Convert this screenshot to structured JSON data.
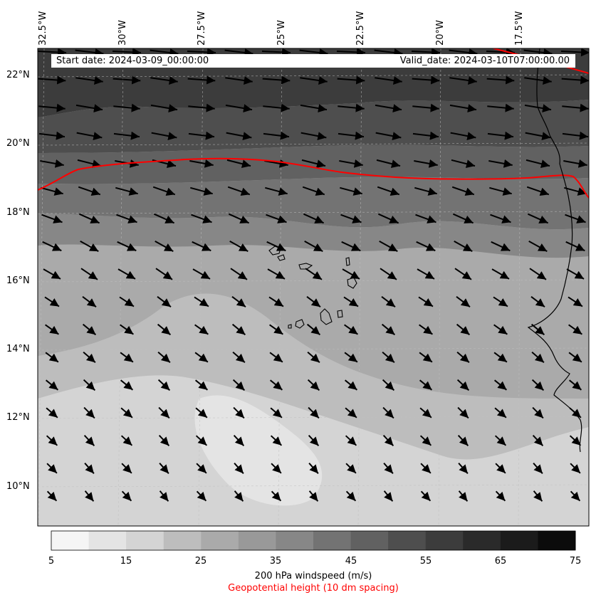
{
  "header": {
    "start_date_text": "Start date: 2024-03-09_00:00:00",
    "valid_date_text": "Valid_date: 2024-03-10T07:00:00.00"
  },
  "axes": {
    "longitude_labels": [
      "32.5°W",
      "30°W",
      "27.5°W",
      "25°W",
      "22.5°W",
      "20°W",
      "17.5°W"
    ],
    "latitude_labels": [
      "22°N",
      "20°N",
      "18°N",
      "16°N",
      "14°N",
      "12°N",
      "10°N"
    ]
  },
  "colorbar": {
    "ticks": [
      "5",
      "15",
      "25",
      "35",
      "45",
      "55",
      "65",
      "75"
    ],
    "levels": [
      5,
      10,
      15,
      20,
      25,
      30,
      35,
      40,
      45,
      50,
      55,
      60,
      65,
      70,
      75
    ],
    "colors": [
      "#f5f5f5",
      "#e4e4e4",
      "#d4d4d4",
      "#bdbdbd",
      "#aaaaaa",
      "#999999",
      "#878787",
      "#737373",
      "#616161",
      "#4e4e4e",
      "#3c3c3c",
      "#2a2a2a",
      "#1b1b1b",
      "#0b0b0b"
    ],
    "label": "200 hPa windspeed (m/s)",
    "sublabel": "Geopotential height (10 dm spacing)"
  },
  "colors": {
    "contour": "#ff0000",
    "coastline": "#000000",
    "arrows": "#000000",
    "sublabel": "#ff0000"
  }
}
